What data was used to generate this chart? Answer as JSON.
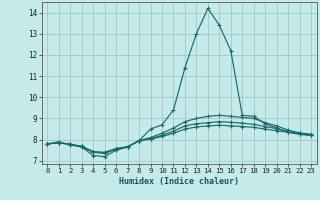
{
  "xlabel": "Humidex (Indice chaleur)",
  "bg_color": "#c5eaea",
  "grid_color": "#a8cccc",
  "line_color": "#1a6b6b",
  "xlim": [
    -0.5,
    23.5
  ],
  "ylim": [
    6.85,
    14.5
  ],
  "yticks": [
    7,
    8,
    9,
    10,
    11,
    12,
    13,
    14
  ],
  "xticks": [
    0,
    1,
    2,
    3,
    4,
    5,
    6,
    7,
    8,
    9,
    10,
    11,
    12,
    13,
    14,
    15,
    16,
    17,
    18,
    19,
    20,
    21,
    22,
    23
  ],
  "lines": [
    [
      7.8,
      7.9,
      7.75,
      7.65,
      7.25,
      7.2,
      7.5,
      7.65,
      7.95,
      8.5,
      8.7,
      9.4,
      11.4,
      13.0,
      14.2,
      13.4,
      12.2,
      9.15,
      9.1,
      8.75,
      8.55,
      8.35,
      8.25,
      8.2
    ],
    [
      7.8,
      7.85,
      7.78,
      7.68,
      7.4,
      7.35,
      7.55,
      7.65,
      7.95,
      8.1,
      8.3,
      8.55,
      8.85,
      9.0,
      9.1,
      9.15,
      9.1,
      9.05,
      9.0,
      8.8,
      8.65,
      8.45,
      8.32,
      8.25
    ],
    [
      7.8,
      7.85,
      7.78,
      7.68,
      7.42,
      7.38,
      7.57,
      7.66,
      7.95,
      8.05,
      8.2,
      8.4,
      8.65,
      8.75,
      8.8,
      8.85,
      8.82,
      8.78,
      8.72,
      8.62,
      8.52,
      8.38,
      8.3,
      8.23
    ],
    [
      7.8,
      7.85,
      7.78,
      7.68,
      7.44,
      7.4,
      7.58,
      7.67,
      7.95,
      8.02,
      8.15,
      8.3,
      8.5,
      8.6,
      8.65,
      8.68,
      8.65,
      8.62,
      8.58,
      8.5,
      8.42,
      8.35,
      8.28,
      8.2
    ]
  ]
}
